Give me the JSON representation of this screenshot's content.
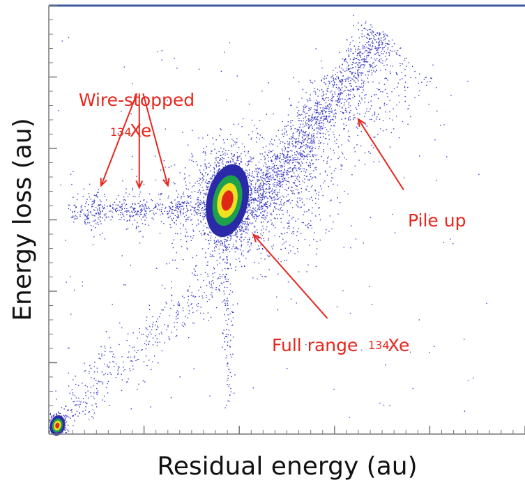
{
  "chart_data": {
    "type": "scatter",
    "title": "",
    "xlabel": "Residual energy (au)",
    "ylabel": "Energy loss (au)",
    "xlim": [
      0,
      100
    ],
    "ylim": [
      0,
      100
    ],
    "grid": false,
    "legend": "none",
    "tick_labels_shown": false,
    "colormap": [
      "#2a2aa8",
      "#1fa04a",
      "#f0e020",
      "#e02818"
    ],
    "point_color": "#3a3ac8",
    "clusters": [
      {
        "name": "full-range-main",
        "x": 37.5,
        "y": 54.5,
        "sx": 2.5,
        "sy": 5.0,
        "n": 1500,
        "peak": true
      },
      {
        "name": "full-range-halo",
        "x": 41.0,
        "y": 53.0,
        "sx": 8.0,
        "sy": 7.5,
        "n": 900
      },
      {
        "name": "origin-spot",
        "x": 1.8,
        "y": 2.0,
        "sx": 0.9,
        "sy": 1.4,
        "n": 260,
        "peak": true
      },
      {
        "name": "wire-stopped-1",
        "x": 9.5,
        "y": 51.5,
        "sx": 1.6,
        "sy": 2.4,
        "n": 110
      },
      {
        "name": "wire-stopped-2",
        "x": 18.0,
        "y": 52.0,
        "sx": 1.6,
        "sy": 2.2,
        "n": 110
      },
      {
        "name": "wire-stopped-3",
        "x": 27.0,
        "y": 52.5,
        "sx": 1.6,
        "sy": 2.0,
        "n": 90
      }
    ],
    "bands": [
      {
        "name": "pile-up",
        "from": [
          42,
          52
        ],
        "to": [
          70,
          94
        ],
        "width": 4.5,
        "n": 1300
      },
      {
        "name": "pile-up-spray",
        "from": [
          45,
          55
        ],
        "to": [
          75,
          88
        ],
        "width": 11.0,
        "n": 600
      },
      {
        "name": "wire-stopped-line",
        "from": [
          4,
          52
        ],
        "to": [
          34,
          53
        ],
        "width": 2.2,
        "n": 220
      },
      {
        "name": "low-energy-tail",
        "from": [
          1,
          2
        ],
        "to": [
          36,
          38
        ],
        "width": 5.5,
        "n": 420
      },
      {
        "name": "vertical-tail",
        "from": [
          37,
          48
        ],
        "to": [
          38,
          6
        ],
        "width": 1.3,
        "n": 120
      }
    ],
    "uniform_background": 160,
    "annotations": [
      {
        "label": "Wire-stopped",
        "sup": "",
        "text_x": 19.0,
        "text_y": 89.0
      },
      {
        "label": "Xe",
        "sup": "134",
        "text_x": 20.0,
        "text_y": 82.0
      },
      {
        "label": "Pile up",
        "sup": "",
        "text_x": 77.0,
        "text_y": 53.0
      },
      {
        "label": "Full range ",
        "sup": "134",
        "label_after": "Xe",
        "text_x": 69.0,
        "text_y": 21.0
      }
    ],
    "arrows": [
      {
        "from": [
          18.5,
          79.5
        ],
        "to": [
          11.0,
          58.0
        ]
      },
      {
        "from": [
          19.0,
          79.5
        ],
        "to": [
          19.0,
          57.5
        ]
      },
      {
        "from": [
          19.8,
          79.5
        ],
        "to": [
          25.0,
          58.0
        ]
      },
      {
        "from": [
          74.5,
          57.0
        ],
        "to": [
          65.0,
          73.5
        ]
      },
      {
        "from": [
          58.5,
          27.0
        ],
        "to": [
          43.0,
          46.5
        ]
      }
    ]
  },
  "labels": {
    "xlabel": "Residual energy (au)",
    "ylabel": "Energy loss (au)",
    "wire_stopped": "Wire-stopped",
    "xe": "Xe",
    "sup_134": "134",
    "pile_up": "Pile up",
    "full_range": "Full range ",
    "full_range_sup": "134",
    "full_range_xe": "Xe"
  }
}
